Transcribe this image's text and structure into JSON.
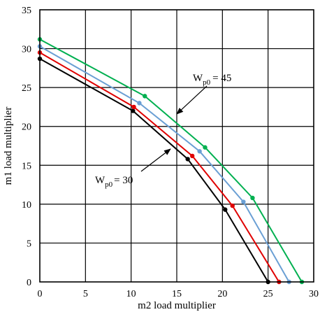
{
  "chart_data": {
    "type": "line",
    "xlabel": "m2 load multiplier",
    "ylabel": "m1 load multiplier",
    "xlim": [
      0,
      30
    ],
    "ylim": [
      0,
      35
    ],
    "xticks": [
      0,
      5,
      10,
      15,
      20,
      25,
      30
    ],
    "yticks": [
      0,
      5,
      10,
      15,
      20,
      25,
      30,
      35
    ],
    "grid": true,
    "legend": "none",
    "series": [
      {
        "color": "#000000",
        "points": [
          [
            0,
            28.7
          ],
          [
            10.2,
            22.0
          ],
          [
            16.2,
            15.8
          ],
          [
            20.3,
            9.3
          ],
          [
            25.0,
            0
          ]
        ]
      },
      {
        "color": "#e00000",
        "points": [
          [
            0,
            29.5
          ],
          [
            10.3,
            22.5
          ],
          [
            16.7,
            16.2
          ],
          [
            21.1,
            9.8
          ],
          [
            26.2,
            0
          ]
        ]
      },
      {
        "color": "#6a9fd4",
        "points": [
          [
            0,
            30.3
          ],
          [
            10.9,
            23.0
          ],
          [
            17.5,
            16.8
          ],
          [
            22.3,
            10.3
          ],
          [
            27.3,
            0
          ]
        ]
      },
      {
        "color": "#00b050",
        "points": [
          [
            0,
            31.2
          ],
          [
            11.5,
            23.9
          ],
          [
            18.1,
            17.3
          ],
          [
            23.3,
            10.8
          ],
          [
            28.7,
            0
          ]
        ]
      }
    ],
    "annotations": [
      {
        "main": "W",
        "sub": "p0",
        "rest": "= 45"
      },
      {
        "main": "W",
        "sub": "p0",
        "rest": "= 30"
      }
    ]
  }
}
